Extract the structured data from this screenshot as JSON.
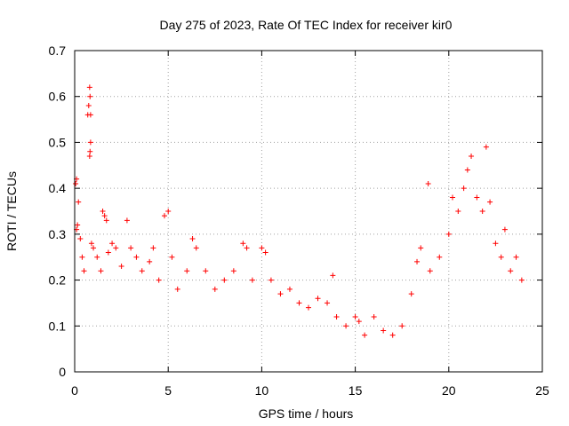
{
  "chart_data": {
    "type": "scatter",
    "title": "Day 275 of 2023, Rate Of TEC Index for receiver kir0",
    "xlabel": "GPS time / hours",
    "ylabel": "ROTI / TECUs",
    "xlim": [
      0,
      25
    ],
    "ylim": [
      0,
      0.7
    ],
    "xticks": [
      0,
      5,
      10,
      15,
      20,
      25
    ],
    "yticks": [
      0,
      0.1,
      0.2,
      0.3,
      0.4,
      0.5,
      0.6,
      0.7
    ],
    "xtick_labels": [
      "0",
      "5",
      "10",
      "15",
      "20",
      "25"
    ],
    "ytick_labels": [
      "0",
      "0.1",
      "0.2",
      "0.3",
      "0.4",
      "0.5",
      "0.6",
      "0.7"
    ],
    "grid": true,
    "marker": "+",
    "color": "#ff0000",
    "series": [
      {
        "points": [
          [
            0.05,
            0.41
          ],
          [
            0.1,
            0.42
          ],
          [
            0.1,
            0.31
          ],
          [
            0.15,
            0.32
          ],
          [
            0.2,
            0.37
          ],
          [
            0.3,
            0.29
          ],
          [
            0.4,
            0.25
          ],
          [
            0.5,
            0.22
          ],
          [
            0.7,
            0.56
          ],
          [
            0.75,
            0.58
          ],
          [
            0.8,
            0.62
          ],
          [
            0.82,
            0.6
          ],
          [
            0.85,
            0.5
          ],
          [
            0.8,
            0.47
          ],
          [
            0.82,
            0.48
          ],
          [
            0.85,
            0.56
          ],
          [
            0.9,
            0.28
          ],
          [
            1.0,
            0.27
          ],
          [
            1.2,
            0.25
          ],
          [
            1.4,
            0.22
          ],
          [
            1.5,
            0.35
          ],
          [
            1.6,
            0.34
          ],
          [
            1.7,
            0.33
          ],
          [
            1.8,
            0.26
          ],
          [
            2.0,
            0.28
          ],
          [
            2.2,
            0.27
          ],
          [
            2.5,
            0.23
          ],
          [
            2.8,
            0.33
          ],
          [
            3.0,
            0.27
          ],
          [
            3.3,
            0.25
          ],
          [
            3.6,
            0.22
          ],
          [
            4.0,
            0.24
          ],
          [
            4.2,
            0.27
          ],
          [
            4.5,
            0.2
          ],
          [
            4.8,
            0.34
          ],
          [
            5.0,
            0.35
          ],
          [
            5.2,
            0.25
          ],
          [
            5.5,
            0.18
          ],
          [
            6.0,
            0.22
          ],
          [
            6.3,
            0.29
          ],
          [
            6.5,
            0.27
          ],
          [
            7.0,
            0.22
          ],
          [
            7.5,
            0.18
          ],
          [
            8.0,
            0.2
          ],
          [
            8.5,
            0.22
          ],
          [
            9.0,
            0.28
          ],
          [
            9.2,
            0.27
          ],
          [
            9.5,
            0.2
          ],
          [
            10.0,
            0.27
          ],
          [
            10.2,
            0.26
          ],
          [
            10.5,
            0.2
          ],
          [
            11.0,
            0.17
          ],
          [
            11.5,
            0.18
          ],
          [
            12.0,
            0.15
          ],
          [
            12.5,
            0.14
          ],
          [
            13.0,
            0.16
          ],
          [
            13.5,
            0.15
          ],
          [
            13.8,
            0.21
          ],
          [
            14.0,
            0.12
          ],
          [
            14.5,
            0.1
          ],
          [
            15.0,
            0.12
          ],
          [
            15.2,
            0.11
          ],
          [
            15.5,
            0.08
          ],
          [
            16.0,
            0.12
          ],
          [
            16.5,
            0.09
          ],
          [
            17.0,
            0.08
          ],
          [
            17.5,
            0.1
          ],
          [
            18.0,
            0.17
          ],
          [
            18.3,
            0.24
          ],
          [
            18.5,
            0.27
          ],
          [
            18.9,
            0.41
          ],
          [
            19.0,
            0.22
          ],
          [
            19.5,
            0.25
          ],
          [
            20.0,
            0.3
          ],
          [
            20.2,
            0.38
          ],
          [
            20.5,
            0.35
          ],
          [
            20.8,
            0.4
          ],
          [
            21.0,
            0.44
          ],
          [
            21.2,
            0.47
          ],
          [
            21.5,
            0.38
          ],
          [
            21.8,
            0.35
          ],
          [
            22.0,
            0.49
          ],
          [
            22.2,
            0.37
          ],
          [
            22.5,
            0.28
          ],
          [
            22.8,
            0.25
          ],
          [
            23.0,
            0.31
          ],
          [
            23.3,
            0.22
          ],
          [
            23.6,
            0.25
          ],
          [
            23.9,
            0.2
          ]
        ]
      }
    ]
  }
}
